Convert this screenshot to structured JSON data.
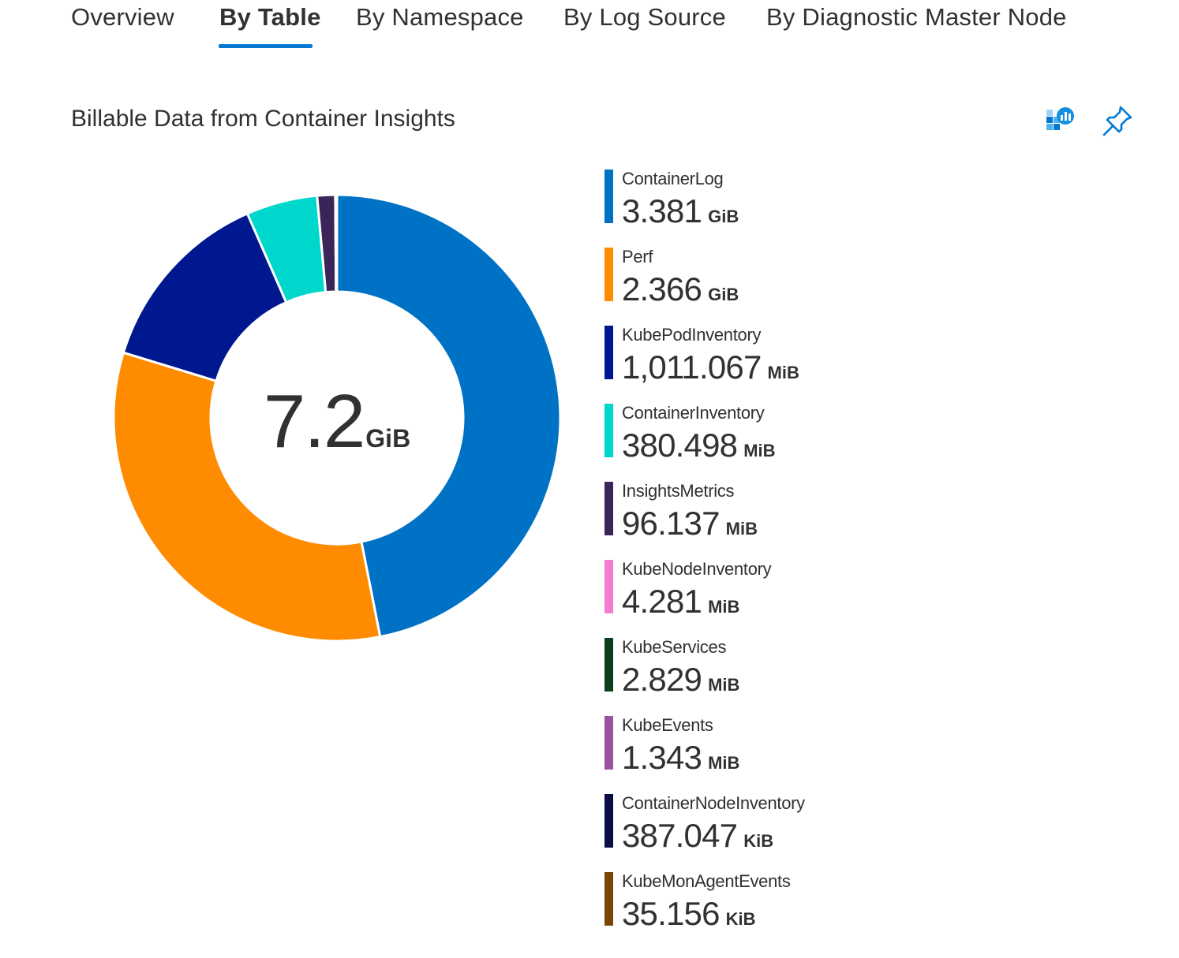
{
  "tabs": [
    {
      "label": "Overview",
      "active": false
    },
    {
      "label": "By Table",
      "active": true
    },
    {
      "label": "By Namespace",
      "active": false
    },
    {
      "label": "By Log Source",
      "active": false
    },
    {
      "label": "By Diagnostic Master Node",
      "active": false
    }
  ],
  "card": {
    "title": "Billable Data from Container Insights",
    "actions": [
      {
        "icon": "insights-workbook-icon"
      },
      {
        "icon": "pin-icon"
      }
    ]
  },
  "chart_data": {
    "type": "pie",
    "variant": "donut",
    "total": {
      "value": "7.2",
      "unit": "GiB"
    },
    "series": [
      {
        "name": "ContainerLog",
        "value": "3.381",
        "unit": "GiB",
        "value_mib": 3462.1,
        "color": "#0072c6"
      },
      {
        "name": "Perf",
        "value": "2.366",
        "unit": "GiB",
        "value_mib": 2422.8,
        "color": "#ff8c00"
      },
      {
        "name": "KubePodInventory",
        "value": "1,011.067",
        "unit": "MiB",
        "value_mib": 1011.067,
        "color": "#00188f"
      },
      {
        "name": "ContainerInventory",
        "value": "380.498",
        "unit": "MiB",
        "value_mib": 380.498,
        "color": "#00d7cc"
      },
      {
        "name": "InsightsMetrics",
        "value": "96.137",
        "unit": "MiB",
        "value_mib": 96.137,
        "color": "#3b2558"
      },
      {
        "name": "KubeNodeInventory",
        "value": "4.281",
        "unit": "MiB",
        "value_mib": 4.281,
        "color": "#f27cd0"
      },
      {
        "name": "KubeServices",
        "value": "2.829",
        "unit": "MiB",
        "value_mib": 2.829,
        "color": "#0b3f1e"
      },
      {
        "name": "KubeEvents",
        "value": "1.343",
        "unit": "MiB",
        "value_mib": 1.343,
        "color": "#9b539f"
      },
      {
        "name": "ContainerNodeInventory",
        "value": "387.047",
        "unit": "KiB",
        "value_mib": 0.378,
        "color": "#0d0d45"
      },
      {
        "name": "KubeMonAgentEvents",
        "value": "35.156",
        "unit": "KiB",
        "value_mib": 0.034,
        "color": "#7a4606"
      }
    ]
  }
}
